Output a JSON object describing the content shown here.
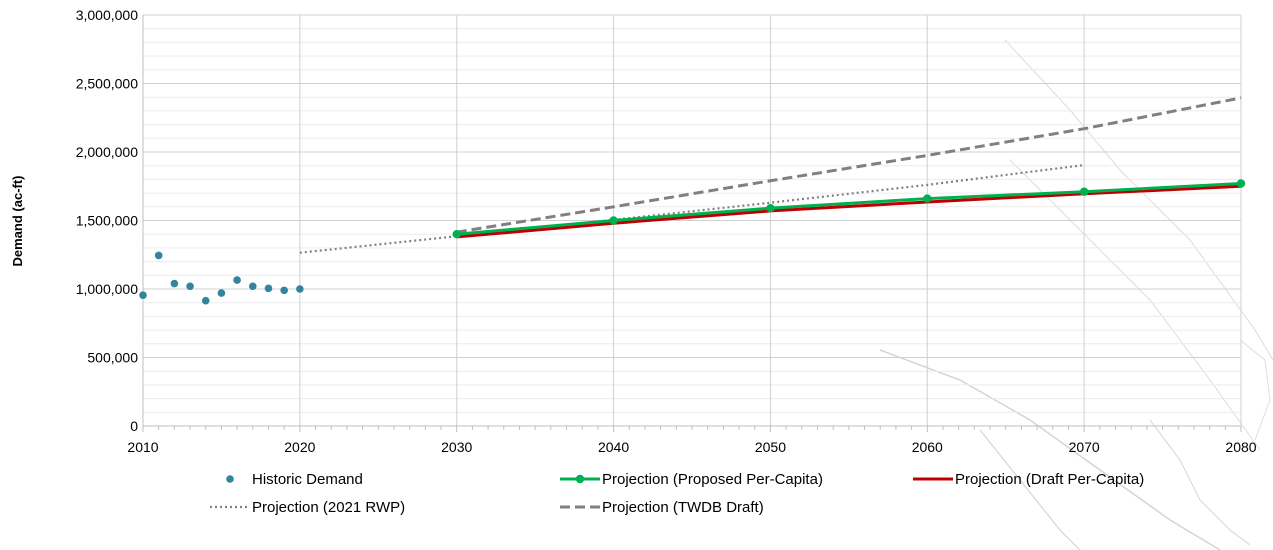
{
  "chart_data": {
    "type": "line",
    "title": "",
    "xlabel": "",
    "ylabel": "Demand (ac-ft)",
    "xlim": [
      2010,
      2080
    ],
    "ylim": [
      0,
      3000000
    ],
    "x_ticks": [
      "2010",
      "2020",
      "2030",
      "2040",
      "2050",
      "2060",
      "2070",
      "2080"
    ],
    "y_ticks": [
      "0",
      "500,000",
      "1,000,000",
      "1,500,000",
      "2,000,000",
      "2,500,000",
      "3,000,000"
    ],
    "grid": true,
    "legend_position": "bottom",
    "series": [
      {
        "name": "Historic Demand",
        "style": "markers",
        "color": "#31859C",
        "x": [
          2010,
          2011,
          2012,
          2013,
          2014,
          2015,
          2016,
          2017,
          2018,
          2019,
          2020
        ],
        "y": [
          955000,
          1245000,
          1040000,
          1020000,
          915000,
          970000,
          1065000,
          1020000,
          1005000,
          990000,
          1000000
        ]
      },
      {
        "name": "Projection (Proposed Per-Capita)",
        "style": "line-markers",
        "color": "#00B050",
        "x": [
          2030,
          2040,
          2050,
          2060,
          2070,
          2080
        ],
        "y": [
          1400000,
          1500000,
          1590000,
          1660000,
          1710000,
          1770000
        ]
      },
      {
        "name": "Projection (Draft Per-Capita)",
        "style": "line",
        "color": "#C00000",
        "x": [
          2030,
          2040,
          2050,
          2060,
          2070,
          2080
        ],
        "y": [
          1380000,
          1480000,
          1570000,
          1635000,
          1695000,
          1750000
        ]
      },
      {
        "name": "Projection (2021 RWP)",
        "style": "dotted",
        "color": "#808080",
        "x": [
          2020,
          2030,
          2040,
          2050,
          2060,
          2070
        ],
        "y": [
          1265000,
          1385000,
          1505000,
          1630000,
          1760000,
          1905000
        ]
      },
      {
        "name": "Projection (TWDB Draft)",
        "style": "dashed",
        "color": "#808080",
        "x": [
          2030,
          2040,
          2050,
          2060,
          2070,
          2080
        ],
        "y": [
          1415000,
          1600000,
          1790000,
          1975000,
          2170000,
          2395000
        ]
      }
    ],
    "legend_layout": [
      [
        0,
        1,
        2
      ],
      [
        3,
        4
      ]
    ]
  }
}
